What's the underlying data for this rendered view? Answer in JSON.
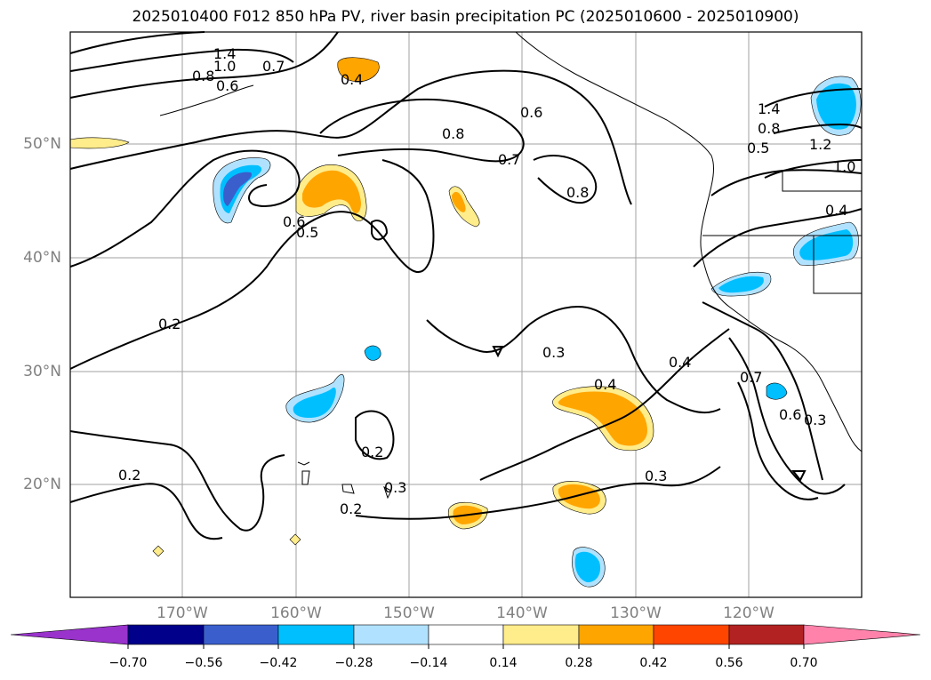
{
  "title": "2025010400 F012 850 hPa PV, river basin precipitation PC (2025010600 - 2025010900)",
  "axes": {
    "lat_labels": [
      "50°N",
      "40°N",
      "30°N",
      "20°N"
    ],
    "lon_labels": [
      "170°W",
      "160°W",
      "150°W",
      "140°W",
      "130°W",
      "120°W"
    ]
  },
  "contour_labels": [
    "1.4",
    "1.0",
    "0.8",
    "0.6",
    "0.7",
    "0.4",
    "0.6",
    "0.8",
    "0.7",
    "0.8",
    "0.6",
    "0.5",
    "0.2",
    "0.3",
    "0.4",
    "0.4",
    "0.2",
    "0.3",
    "0.2",
    "0.2",
    "0.3",
    "0.7",
    "0.6",
    "0.3",
    "1.4",
    "0.8",
    "0.5",
    "1.2",
    "1.0",
    "0.4"
  ],
  "colorbar": {
    "tick_labels": [
      "−0.70",
      "−0.56",
      "−0.42",
      "−0.28",
      "−0.14",
      "0.14",
      "0.28",
      "0.42",
      "0.56",
      "0.70"
    ],
    "colors": [
      "#9933cc",
      "#00008b",
      "#3a5fcd",
      "#00bfff",
      "#b0e2ff",
      "#ffffff",
      "#ffec8b",
      "#ffa500",
      "#ff4500",
      "#b22222",
      "#ff82ab"
    ]
  }
}
